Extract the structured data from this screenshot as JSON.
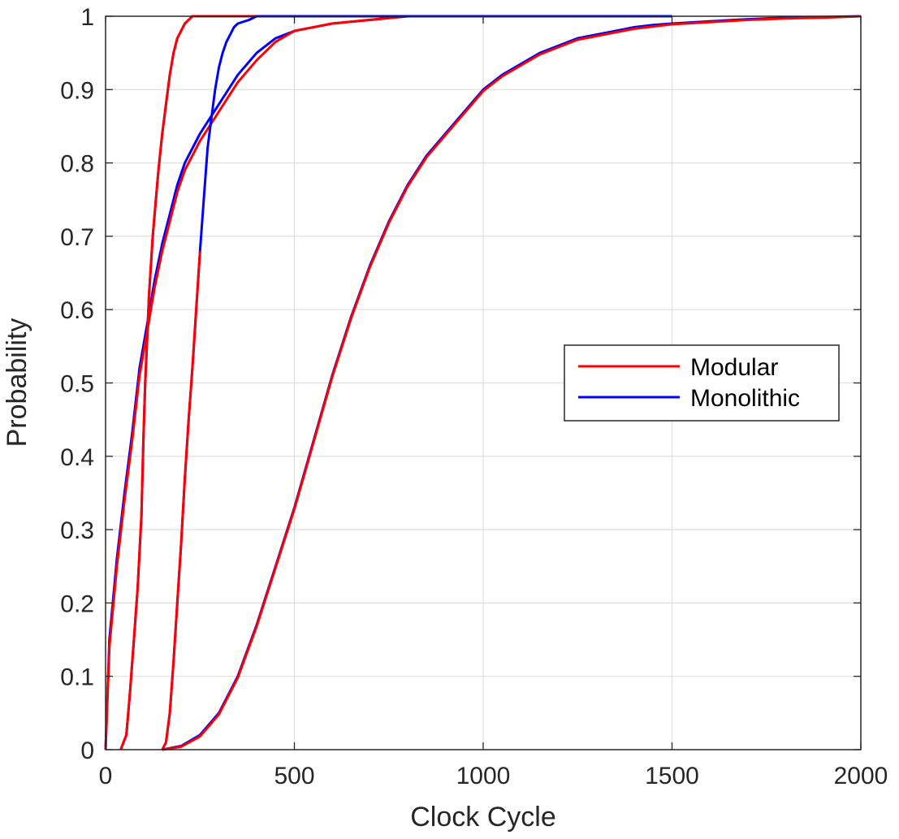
{
  "chart_data": {
    "type": "line",
    "title": "",
    "xlabel": "Clock Cycle",
    "ylabel": "Probability",
    "xlim": [
      0,
      2000
    ],
    "ylim": [
      0,
      1
    ],
    "xticks": [
      0,
      500,
      1000,
      1500,
      2000
    ],
    "xtick_labels": [
      "0",
      "500",
      "1000",
      "1500",
      "2000"
    ],
    "yticks": [
      0,
      0.1,
      0.2,
      0.3,
      0.4,
      0.5,
      0.6,
      0.7,
      0.8,
      0.9,
      1
    ],
    "ytick_labels": [
      "0",
      "0.1",
      "0.2",
      "0.3",
      "0.4",
      "0.5",
      "0.6",
      "0.7",
      "0.8",
      "0.9",
      "1"
    ],
    "grid": true,
    "legend_position": "right",
    "legend": [
      {
        "label": "Modular",
        "color": "#ff0000"
      },
      {
        "label": "Monolithic",
        "color": "#0000ff"
      }
    ],
    "series": [
      {
        "legend": "Monolithic",
        "color": "#0000ff",
        "x": [
          0,
          10,
          30,
          50,
          70,
          90,
          110,
          130,
          150,
          170,
          190,
          210,
          250,
          300,
          350,
          400,
          450,
          500,
          600,
          700,
          800,
          900,
          1500
        ],
        "y": [
          0,
          0.15,
          0.26,
          0.35,
          0.43,
          0.52,
          0.58,
          0.64,
          0.69,
          0.73,
          0.77,
          0.8,
          0.84,
          0.88,
          0.92,
          0.95,
          0.97,
          0.98,
          0.99,
          0.995,
          1,
          1,
          1
        ]
      },
      {
        "legend": "Modular",
        "color": "#ff0000",
        "x": [
          0,
          10,
          30,
          50,
          70,
          90,
          110,
          130,
          150,
          170,
          190,
          210,
          250,
          300,
          350,
          400,
          450,
          500,
          600,
          700,
          800,
          900,
          1500
        ],
        "y": [
          0,
          0.14,
          0.25,
          0.34,
          0.42,
          0.51,
          0.57,
          0.63,
          0.68,
          0.72,
          0.76,
          0.79,
          0.83,
          0.87,
          0.91,
          0.94,
          0.965,
          0.98,
          0.99,
          0.995,
          1,
          1,
          1
        ]
      },
      {
        "legend": "Monolithic",
        "color": "#0000ff",
        "x": [
          40,
          55,
          65,
          75,
          85,
          95,
          100,
          105,
          110,
          115,
          120,
          125,
          130,
          140,
          150,
          160,
          170,
          180,
          190,
          200,
          210,
          220,
          230,
          240,
          250,
          600
        ],
        "y": [
          0,
          0.02,
          0.08,
          0.15,
          0.22,
          0.32,
          0.42,
          0.5,
          0.56,
          0.62,
          0.66,
          0.7,
          0.73,
          0.79,
          0.84,
          0.88,
          0.92,
          0.95,
          0.97,
          0.98,
          0.99,
          0.995,
          1,
          1,
          1,
          1
        ]
      },
      {
        "legend": "Modular",
        "color": "#ff0000",
        "x": [
          40,
          55,
          65,
          75,
          85,
          95,
          100,
          105,
          110,
          115,
          120,
          125,
          130,
          140,
          150,
          160,
          170,
          180,
          190,
          200,
          210,
          220,
          230,
          240,
          250,
          600
        ],
        "y": [
          0,
          0.02,
          0.08,
          0.15,
          0.22,
          0.32,
          0.42,
          0.5,
          0.56,
          0.62,
          0.66,
          0.7,
          0.73,
          0.79,
          0.84,
          0.88,
          0.92,
          0.95,
          0.97,
          0.98,
          0.99,
          0.995,
          1,
          1,
          1,
          1
        ]
      },
      {
        "legend": "Monolithic",
        "color": "#0000ff",
        "x": [
          150,
          160,
          170,
          180,
          190,
          200,
          210,
          220,
          230,
          240,
          250,
          260,
          270,
          280,
          290,
          300,
          310,
          320,
          330,
          340,
          350,
          380,
          400,
          430,
          500,
          800,
          1500
        ],
        "y": [
          0,
          0.01,
          0.05,
          0.12,
          0.2,
          0.28,
          0.37,
          0.45,
          0.52,
          0.6,
          0.68,
          0.75,
          0.82,
          0.86,
          0.9,
          0.93,
          0.95,
          0.965,
          0.975,
          0.985,
          0.99,
          0.995,
          1,
          1,
          1,
          1,
          1
        ]
      },
      {
        "legend": "Modular",
        "color": "#ff0000",
        "x": [
          150,
          160,
          170,
          180,
          190,
          200,
          210,
          220,
          230,
          240,
          250
        ],
        "y": [
          0,
          0.01,
          0.05,
          0.12,
          0.2,
          0.28,
          0.37,
          0.45,
          0.52,
          0.6,
          0.68
        ]
      },
      {
        "legend": "Monolithic",
        "color": "#0000ff",
        "x": [
          150,
          200,
          250,
          300,
          350,
          400,
          450,
          500,
          550,
          600,
          650,
          700,
          750,
          800,
          850,
          900,
          950,
          1000,
          1050,
          1100,
          1150,
          1200,
          1250,
          1300,
          1350,
          1400,
          1450,
          1500,
          1600,
          1700,
          1800,
          1900,
          2000
        ],
        "y": [
          0,
          0.005,
          0.02,
          0.05,
          0.1,
          0.17,
          0.25,
          0.33,
          0.42,
          0.51,
          0.59,
          0.66,
          0.72,
          0.77,
          0.81,
          0.84,
          0.87,
          0.9,
          0.92,
          0.935,
          0.95,
          0.96,
          0.97,
          0.975,
          0.98,
          0.985,
          0.988,
          0.99,
          0.993,
          0.996,
          0.998,
          0.999,
          1
        ]
      },
      {
        "legend": "Modular",
        "color": "#ff0000",
        "x": [
          150,
          200,
          250,
          300,
          350,
          400,
          450,
          500,
          550,
          600,
          650,
          700,
          750,
          800,
          850,
          900,
          950,
          1000,
          1050,
          1100,
          1150,
          1200,
          1250,
          1300,
          1350,
          1400,
          1450,
          1500,
          1600,
          1700,
          1800,
          1900,
          2000
        ],
        "y": [
          0,
          0.004,
          0.018,
          0.048,
          0.098,
          0.168,
          0.248,
          0.328,
          0.418,
          0.508,
          0.588,
          0.658,
          0.718,
          0.768,
          0.808,
          0.838,
          0.868,
          0.898,
          0.918,
          0.933,
          0.948,
          0.958,
          0.968,
          0.973,
          0.978,
          0.983,
          0.986,
          0.989,
          0.992,
          0.995,
          0.997,
          0.998,
          1
        ]
      }
    ]
  }
}
